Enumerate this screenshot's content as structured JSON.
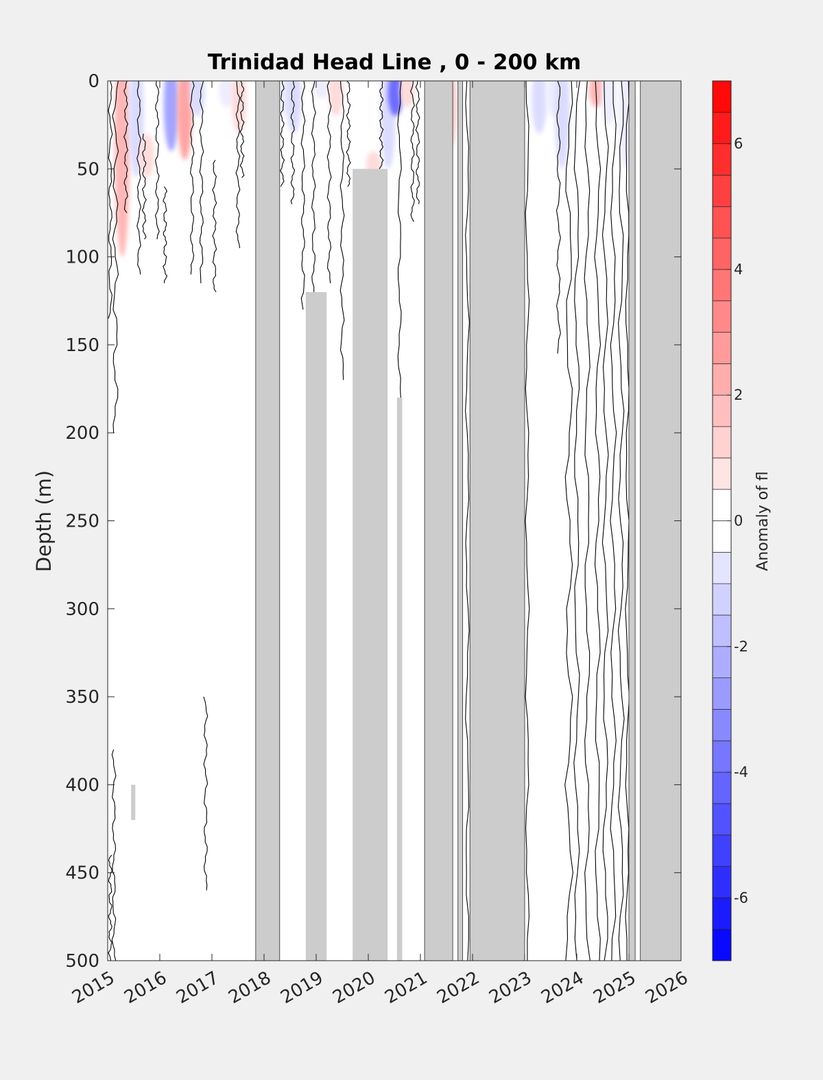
{
  "chart_data": {
    "type": "heatmap",
    "title": "Trinidad Head Line , 0 - 200 km",
    "xlabel": "",
    "ylabel": "Depth (m)",
    "xlim": [
      2015,
      2026
    ],
    "ylim": [
      0,
      500
    ],
    "y_reversed": true,
    "x_ticks": [
      2015,
      2016,
      2017,
      2018,
      2019,
      2020,
      2021,
      2022,
      2023,
      2024,
      2025,
      2026
    ],
    "y_ticks": [
      0,
      50,
      100,
      150,
      200,
      250,
      300,
      350,
      400,
      450,
      500
    ],
    "colorbar": {
      "label": "Anomaly of fl",
      "range": [
        -7,
        7
      ],
      "step": 0.5,
      "ticks": [
        -6,
        -4,
        -2,
        0,
        2,
        4,
        6
      ]
    },
    "no_data_color": "#cccccc",
    "no_data_full_depth": [
      [
        2017.84,
        2018.3
      ],
      [
        2021.08,
        2021.62
      ],
      [
        2021.72,
        2021.81
      ],
      [
        2021.95,
        2023.0
      ],
      [
        2025.0,
        2025.12
      ],
      [
        2025.22,
        2026.0
      ]
    ],
    "no_data_partial": [
      [
        2019.7,
        2020.37,
        50,
        500
      ],
      [
        2018.8,
        2019.2,
        120,
        500
      ],
      [
        2020.55,
        2020.65,
        180,
        500
      ],
      [
        2015.45,
        2015.53,
        400,
        420
      ]
    ],
    "anomalies": [
      {
        "x": 2015.28,
        "d0": 0,
        "d1": 100,
        "v": 2.0
      },
      {
        "x": 2015.55,
        "d0": 0,
        "d1": 55,
        "v": -1.0
      },
      {
        "x": 2015.75,
        "d0": 30,
        "d1": 55,
        "v": 1.0
      },
      {
        "x": 2016.22,
        "d0": 0,
        "d1": 40,
        "v": -2.5
      },
      {
        "x": 2016.48,
        "d0": 0,
        "d1": 45,
        "v": 2.5
      },
      {
        "x": 2016.72,
        "d0": 0,
        "d1": 20,
        "v": -1.0
      },
      {
        "x": 2017.28,
        "d0": 0,
        "d1": 15,
        "v": -0.5
      },
      {
        "x": 2017.52,
        "d0": 0,
        "d1": 30,
        "v": 1.0
      },
      {
        "x": 2018.42,
        "d0": 0,
        "d1": 20,
        "v": -0.5
      },
      {
        "x": 2018.57,
        "d0": 0,
        "d1": 30,
        "v": -1.0
      },
      {
        "x": 2019.1,
        "d0": 0,
        "d1": 10,
        "v": -0.5
      },
      {
        "x": 2019.38,
        "d0": 0,
        "d1": 20,
        "v": 1.0
      },
      {
        "x": 2020.1,
        "d0": 40,
        "d1": 55,
        "v": 1.0
      },
      {
        "x": 2020.38,
        "d0": 0,
        "d1": 50,
        "v": -1.0
      },
      {
        "x": 2020.52,
        "d0": 0,
        "d1": 20,
        "v": -4.0
      },
      {
        "x": 2020.75,
        "d0": 0,
        "d1": 15,
        "v": 1.0
      },
      {
        "x": 2021.55,
        "d0": 0,
        "d1": 40,
        "v": 1.5
      },
      {
        "x": 2023.28,
        "d0": 0,
        "d1": 30,
        "v": -1.0
      },
      {
        "x": 2023.55,
        "d0": 0,
        "d1": 20,
        "v": -0.5
      },
      {
        "x": 2023.72,
        "d0": 0,
        "d1": 50,
        "v": -1.0
      },
      {
        "x": 2024.38,
        "d0": 0,
        "d1": 15,
        "v": 2.0
      },
      {
        "x": 2024.62,
        "d0": 0,
        "d1": 25,
        "v": -0.5
      },
      {
        "x": 2024.95,
        "d0": 0,
        "d1": 50,
        "v": -0.5
      }
    ]
  }
}
